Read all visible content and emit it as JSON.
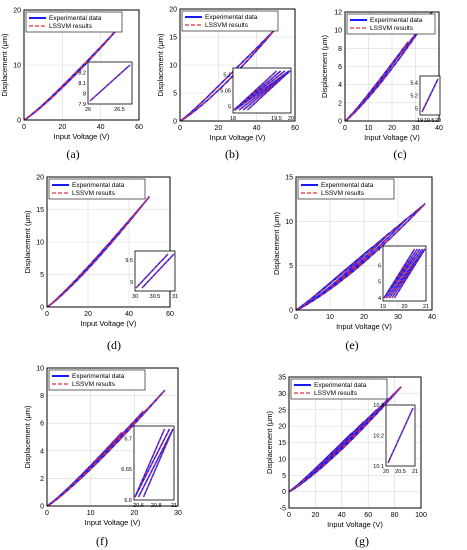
{
  "legend_labels": [
    "Experimental data",
    "LSSVM results"
  ],
  "colors": {
    "experimental": "#1a1aff",
    "lssvm": "#e0303a",
    "axis": "#000000",
    "grid": "#d9d9d9"
  },
  "chart_data": [
    {
      "id": "a",
      "caption": "(a)",
      "type": "line",
      "xlabel": "Input Voltage (V)",
      "ylabel": "Displacement (μm)",
      "xlim": [
        0,
        60
      ],
      "ylim": [
        0,
        20
      ],
      "xticks": [
        "0",
        "20",
        "40",
        "60"
      ],
      "yticks": [
        "0",
        "10",
        "20"
      ],
      "grid": true,
      "legend_position": "top-left",
      "hysteresis": {
        "v_max": 50,
        "d_max": 17,
        "width": 1.2,
        "loops": 1
      },
      "inset": {
        "xlim": [
          26,
          26.7
        ],
        "ylim": [
          7.9,
          8.3
        ],
        "xticks": [
          "26",
          "26.5"
        ],
        "yticks": [
          "7.9",
          "8",
          "8.1",
          "8.2"
        ],
        "lines": 1
      },
      "series": [
        {
          "name": "Experimental data"
        },
        {
          "name": "LSSVM results"
        }
      ]
    },
    {
      "id": "b",
      "caption": "(b)",
      "type": "line",
      "xlabel": "Input Voltage (V)",
      "ylabel": "Displacement (μm)",
      "xlim": [
        0,
        60
      ],
      "ylim": [
        0,
        20
      ],
      "xticks": [
        "0",
        "20",
        "40",
        "60"
      ],
      "yticks": [
        "0",
        "5",
        "10",
        "15",
        "20"
      ],
      "grid": true,
      "legend_position": "top-left",
      "hysteresis": {
        "v_max": 50,
        "d_max": 16.5,
        "width": 3.2,
        "loops": 1
      },
      "inset": {
        "xlim": [
          18,
          20
        ],
        "ylim": [
          4.98,
          5.12
        ],
        "xticks": [
          "18",
          "19.5",
          "20"
        ],
        "yticks": [
          "5",
          "5.05",
          "5.1"
        ],
        "lines": 7
      },
      "series": [
        {
          "name": "Experimental data"
        },
        {
          "name": "LSSVM results"
        }
      ]
    },
    {
      "id": "c",
      "caption": "(c)",
      "type": "line",
      "xlabel": "Input Voltage (V)",
      "ylabel": "Displacement (μm)",
      "xlim": [
        0,
        40
      ],
      "ylim": [
        0,
        12
      ],
      "xticks": [
        "0",
        "10",
        "20",
        "30",
        "40"
      ],
      "yticks": [
        "0",
        "2",
        "4",
        "6",
        "8",
        "10",
        "12"
      ],
      "grid": true,
      "legend_position": "top-left",
      "hysteresis": {
        "v_max": 37,
        "d_max": 12,
        "width": 1.6,
        "loops": 2
      },
      "inset": {
        "xlim": [
          19,
          20.1
        ],
        "ylim": [
          4.9,
          5.5
        ],
        "xticks": [
          "19",
          "19.5",
          "20"
        ],
        "yticks": [
          "5",
          "5.2",
          "5.4"
        ],
        "lines": 1
      },
      "series": [
        {
          "name": "Experimental data"
        },
        {
          "name": "LSSVM results"
        }
      ]
    },
    {
      "id": "d",
      "caption": "(d)",
      "type": "line",
      "xlabel": "Input Voltage (V)",
      "ylabel": "Displacement (μm)",
      "xlim": [
        0,
        60
      ],
      "ylim": [
        0,
        20
      ],
      "xticks": [
        "0",
        "20",
        "40",
        "60"
      ],
      "yticks": [
        "0",
        "5",
        "10",
        "15",
        "20"
      ],
      "grid": true,
      "legend_position": "top-left",
      "hysteresis": {
        "v_max": 50,
        "d_max": 17,
        "width": 1.4,
        "loops": 1
      },
      "inset": {
        "xlim": [
          30,
          31
        ],
        "ylim": [
          8.8,
          9.7
        ],
        "xticks": [
          "30",
          "30.5",
          "31"
        ],
        "yticks": [
          "9",
          "9.5"
        ],
        "lines": 2
      },
      "series": [
        {
          "name": "Experimental data"
        },
        {
          "name": "LSSVM results"
        }
      ]
    },
    {
      "id": "e",
      "caption": "(e)",
      "type": "line",
      "xlabel": "Input Voltage (V)",
      "ylabel": "Displacement (μm)",
      "xlim": [
        0,
        40
      ],
      "ylim": [
        0,
        15
      ],
      "xticks": [
        "0",
        "10",
        "20",
        "30",
        "40"
      ],
      "yticks": [
        "0",
        "5",
        "10",
        "15"
      ],
      "grid": true,
      "legend_position": "top-left",
      "hysteresis": {
        "v_max": 38,
        "d_max": 12,
        "width": 3.5,
        "loops": 4
      },
      "inset": {
        "xlim": [
          19,
          21
        ],
        "ylim": [
          3.8,
          7.2
        ],
        "xticks": [
          "19",
          "20",
          "21"
        ],
        "yticks": [
          "4",
          "5",
          "6",
          "7"
        ],
        "lines": 8
      },
      "series": [
        {
          "name": "Experimental data"
        },
        {
          "name": "LSSVM results"
        }
      ]
    },
    {
      "id": "f",
      "caption": "(f)",
      "type": "line",
      "xlabel": "Input Voltage (V)",
      "ylabel": "Displacement (μm)",
      "xlim": [
        0,
        30
      ],
      "ylim": [
        0,
        10
      ],
      "xticks": [
        "0",
        "10",
        "20",
        "30"
      ],
      "yticks": [
        "0",
        "2",
        "4",
        "6",
        "8",
        "10"
      ],
      "grid": true,
      "legend_position": "top-left",
      "hysteresis": {
        "v_max": 27,
        "d_max": 8.4,
        "width": 0.5,
        "loops": 3
      },
      "inset": {
        "xlim": [
          20.55,
          21
        ],
        "ylim": [
          6.6,
          6.72
        ],
        "xticks": [
          "20.6",
          "20.8",
          "21"
        ],
        "yticks": [
          "6.6",
          "6.65",
          "6.7"
        ],
        "lines": 4
      },
      "series": [
        {
          "name": "Experimental data"
        },
        {
          "name": "LSSVM results"
        }
      ]
    },
    {
      "id": "g",
      "caption": "(g)",
      "type": "line",
      "xlabel": "Input Voltage (V)",
      "ylabel": "Displacement (μm)",
      "xlim": [
        0,
        100
      ],
      "ylim": [
        -5,
        35
      ],
      "xticks": [
        "0",
        "20",
        "40",
        "60",
        "80",
        "100"
      ],
      "yticks": [
        "-5",
        "0",
        "5",
        "10",
        "15",
        "20",
        "25",
        "30",
        "35"
      ],
      "grid": true,
      "legend_position": "top-left",
      "hysteresis": {
        "v_max": 85,
        "d_max": 32,
        "width": 6,
        "loops": 5
      },
      "inset": {
        "xlim": [
          20,
          21
        ],
        "ylim": [
          10.1,
          10.3
        ],
        "xticks": [
          "20",
          "20.5",
          "21"
        ],
        "yticks": [
          "10.1",
          "10.2",
          "10.3"
        ],
        "lines": 1
      },
      "series": [
        {
          "name": "Experimental data"
        },
        {
          "name": "LSSVM results"
        }
      ]
    }
  ]
}
